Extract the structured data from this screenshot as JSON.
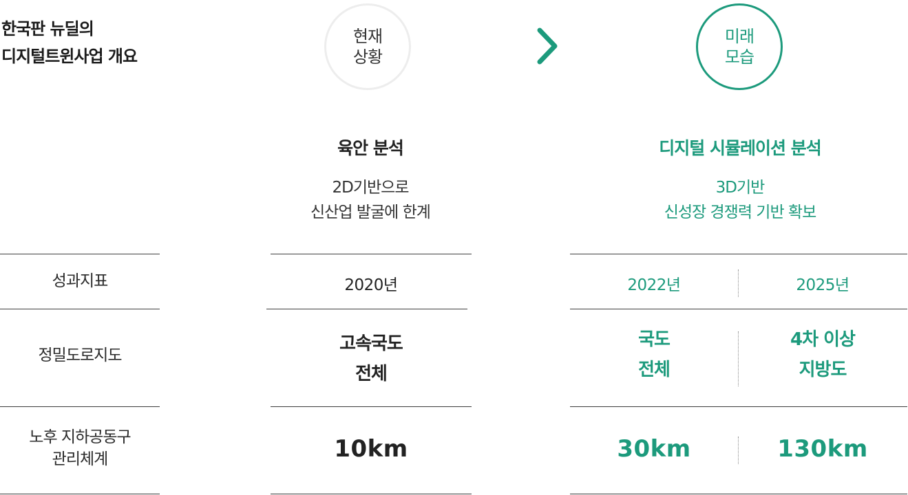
{
  "title": {
    "line1": "한국판 뉴딜의",
    "line2": "디지털트윈사업 개요"
  },
  "current": {
    "circle_line1": "현재",
    "circle_line2": "상황",
    "heading": "육안 분석",
    "desc_line1": "2D기반으로",
    "desc_line2": "신산업 발굴에 한계"
  },
  "future": {
    "circle_line1": "미래",
    "circle_line2": "모습",
    "heading": "디지털 시뮬레이션 분석",
    "desc_line1": "3D기반",
    "desc_line2": "신성장 경쟁력 기반 확보"
  },
  "arrow_icon": "chevron-right-icon",
  "colors": {
    "accent": "#1c9a7c",
    "text": "#222222",
    "circle_border": "#ededed"
  },
  "rows": {
    "indicator": {
      "label": "성과지표",
      "current": "2020년",
      "future_a": "2022년",
      "future_b": "2025년"
    },
    "precise_map": {
      "label": "정밀도로지도",
      "current_line1": "고속국도",
      "current_line2": "전체",
      "future_a_line1": "국도",
      "future_a_line2": "전체",
      "future_b_line1": "4차 이상",
      "future_b_line2": "지방도"
    },
    "utility_tunnel": {
      "label_line1": "노후 지하공동구",
      "label_line2": "관리체계",
      "current": "10km",
      "future_a": "30km",
      "future_b": "130km"
    }
  }
}
